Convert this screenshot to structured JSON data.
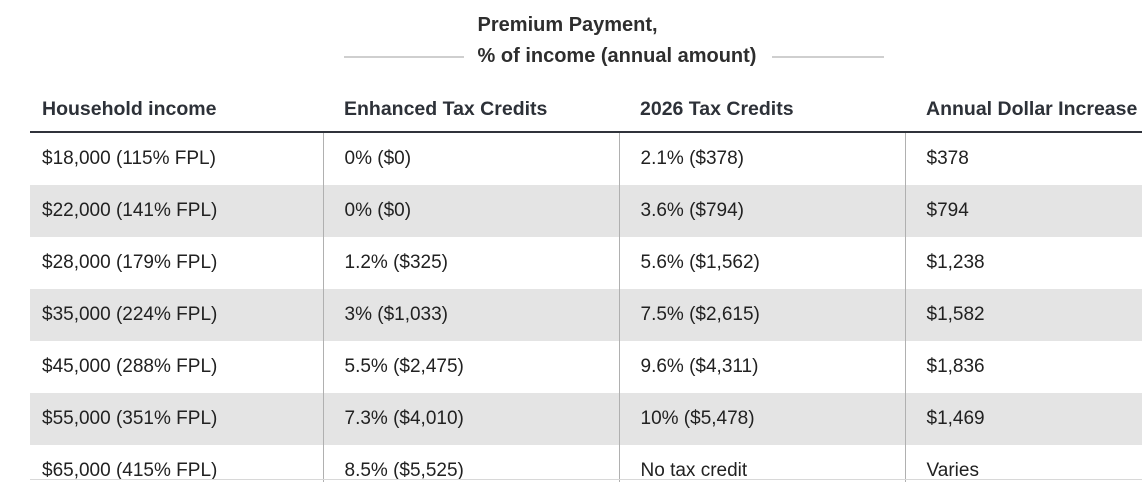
{
  "header": {
    "title_line1": "Premium Payment,",
    "title_line2": "% of income (annual amount)"
  },
  "table": {
    "columns": [
      "Household income",
      "Enhanced Tax Credits",
      "2026 Tax Credits",
      "Annual Dollar Increase"
    ],
    "rows": [
      [
        "$18,000 (115% FPL)",
        "0% ($0)",
        "2.1% ($378)",
        "$378"
      ],
      [
        "$22,000 (141% FPL)",
        "0% ($0)",
        "3.6% ($794)",
        "$794"
      ],
      [
        "$28,000 (179% FPL)",
        "1.2% ($325)",
        "5.6% ($1,562)",
        "$1,238"
      ],
      [
        "$35,000 (224% FPL)",
        "3% ($1,033)",
        "7.5% ($2,615)",
        "$1,582"
      ],
      [
        "$45,000 (288% FPL)",
        "5.5% ($2,475)",
        "9.6% ($4,311)",
        "$1,836"
      ],
      [
        "$55,000 (351% FPL)",
        "7.3% ($4,010)",
        "10% ($5,478)",
        "$1,469"
      ],
      [
        "$65,000 (415% FPL)",
        "8.5% ($5,525)",
        "No tax credit",
        "Varies"
      ]
    ]
  },
  "colors": {
    "zebra_row": "#e4e4e4",
    "column_divider": "#b0b0b0",
    "header_rule": "#30333b",
    "title_rule": "#cfcfcf",
    "header_text": "#2d3138",
    "body_text": "#212121"
  },
  "chart_data": {
    "type": "table",
    "title": "Premium Payment, % of income (annual amount)",
    "columns": [
      "Household income",
      "Enhanced Tax Credits",
      "2026 Tax Credits",
      "Annual Dollar Increase"
    ],
    "rows": [
      [
        "$18,000 (115% FPL)",
        "0% ($0)",
        "2.1% ($378)",
        "$378"
      ],
      [
        "$22,000 (141% FPL)",
        "0% ($0)",
        "3.6% ($794)",
        "$794"
      ],
      [
        "$28,000 (179% FPL)",
        "1.2% ($325)",
        "5.6% ($1,562)",
        "$1,238"
      ],
      [
        "$35,000 (224% FPL)",
        "3% ($1,033)",
        "7.5% ($2,615)",
        "$1,582"
      ],
      [
        "$45,000 (288% FPL)",
        "5.5% ($2,475)",
        "9.6% ($4,311)",
        "$1,836"
      ],
      [
        "$55,000 (351% FPL)",
        "7.3% ($4,010)",
        "10% ($5,478)",
        "$1,469"
      ],
      [
        "$65,000 (415% FPL)",
        "8.5% ($5,525)",
        "No tax credit",
        "Varies"
      ]
    ],
    "layout": {
      "zebra_striping": true,
      "header_span_note": "title spans Enhanced Tax Credits and 2026 Tax Credits columns"
    }
  }
}
